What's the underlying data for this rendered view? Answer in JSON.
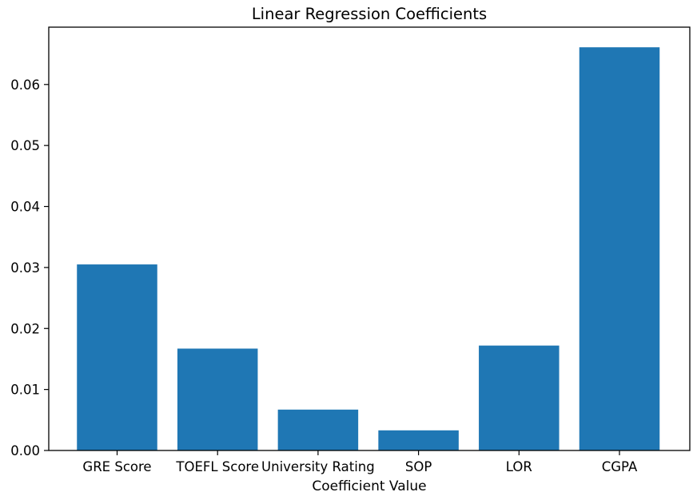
{
  "chart_data": {
    "type": "bar",
    "title": "Linear Regression Coefficients",
    "xlabel": "Coefficient Value",
    "ylabel": "",
    "categories": [
      "GRE Score",
      "TOEFL Score",
      "University Rating",
      "SOP",
      "LOR",
      "CGPA"
    ],
    "values": [
      0.0305,
      0.0167,
      0.0067,
      0.0033,
      0.0172,
      0.0661
    ],
    "ylim": [
      0,
      0.0694
    ],
    "yticks": [
      "0.00",
      "0.01",
      "0.02",
      "0.03",
      "0.04",
      "0.05",
      "0.06"
    ],
    "grid": false,
    "legend": "none",
    "bar_color": "#1f77b4"
  }
}
